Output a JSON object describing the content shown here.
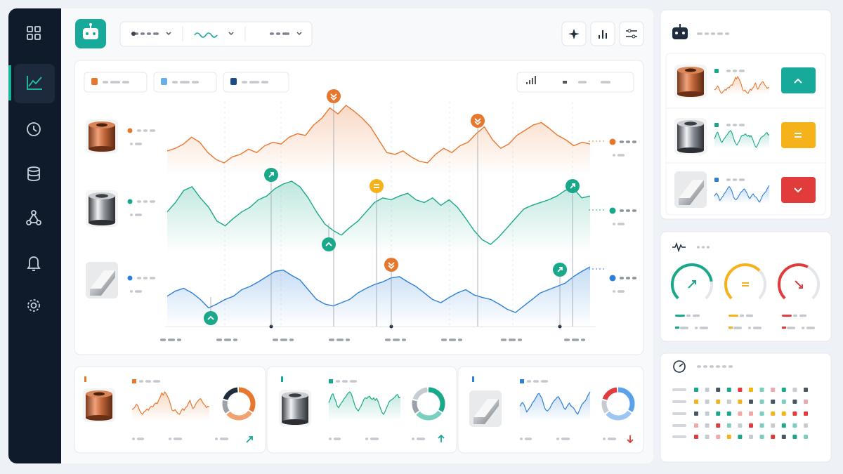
{
  "chart_data": {
    "type": "line",
    "grid": true,
    "series": [
      {
        "color": "#e8772e",
        "values": [
          42,
          45,
          50,
          58,
          52,
          40,
          32,
          28,
          35,
          38,
          44,
          40,
          48,
          52,
          50,
          58,
          62,
          60,
          72,
          80,
          92,
          85,
          95,
          88,
          80,
          70,
          55,
          40,
          38,
          42,
          35,
          30,
          28,
          38,
          45,
          40,
          48,
          52,
          62,
          70,
          55,
          45,
          50,
          60,
          66,
          72,
          75,
          68,
          60,
          55,
          48,
          52,
          50
        ]
      },
      {
        "color": "#1aa88a",
        "values": [
          45,
          55,
          68,
          72,
          60,
          50,
          35,
          30,
          38,
          45,
          50,
          58,
          62,
          70,
          75,
          78,
          72,
          60,
          45,
          32,
          25,
          20,
          28,
          35,
          45,
          55,
          60,
          58,
          62,
          65,
          58,
          55,
          60,
          52,
          58,
          50,
          38,
          25,
          15,
          10,
          18,
          28,
          38,
          48,
          52,
          55,
          58,
          62,
          68,
          70,
          60,
          62
        ]
      },
      {
        "color": "#2f7fd8",
        "values": [
          40,
          48,
          52,
          45,
          35,
          22,
          28,
          35,
          40,
          50,
          55,
          62,
          70,
          78,
          80,
          72,
          65,
          50,
          35,
          28,
          25,
          30,
          35,
          45,
          52,
          58,
          62,
          68,
          70,
          62,
          55,
          45,
          35,
          30,
          38,
          45,
          50,
          42,
          38,
          35,
          28,
          20,
          15,
          25,
          35,
          45,
          50,
          55,
          60,
          70,
          78,
          85
        ]
      }
    ]
  }
}
